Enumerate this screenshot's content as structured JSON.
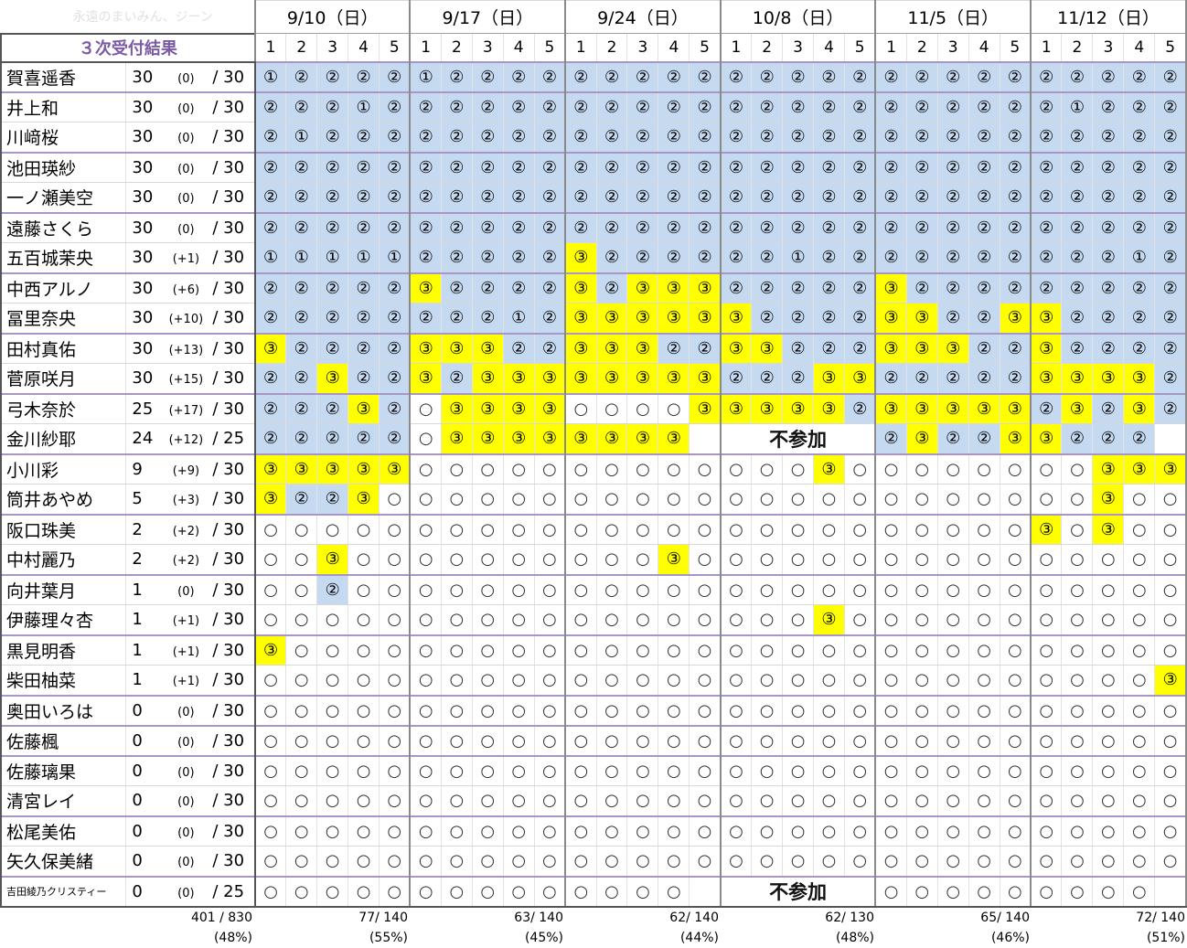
{
  "watermark": "永遠のまいみん、ジーン",
  "result_label": "３次受付結果",
  "dates": [
    "9/10（日）",
    "9/17（日）",
    "9/24（日）",
    "10/8（日）",
    "11/5（日）",
    "11/12（日）"
  ],
  "session_labels": [
    "1",
    "2",
    "3",
    "4",
    "5"
  ],
  "absent_label": "不参加",
  "symbols": {
    "0": "○",
    "1": "①",
    "2": "②",
    "3": "③"
  },
  "members": [
    {
      "name": "賀喜遥香",
      "num": "30",
      "delta": "(0)",
      "total": "/ 30",
      "grp": true,
      "marks": "122221222222222222222222222222"
    },
    {
      "name": "井上和",
      "num": "30",
      "delta": "(0)",
      "total": "/ 30",
      "grp": true,
      "marks": "222122222222222222222222221222"
    },
    {
      "name": "川﨑桜",
      "num": "30",
      "delta": "(0)",
      "total": "/ 30",
      "grp": false,
      "marks": "212222222222222222222222222222"
    },
    {
      "name": "池田瑛紗",
      "num": "30",
      "delta": "(0)",
      "total": "/ 30",
      "grp": true,
      "marks": "222222222222222222222222222222"
    },
    {
      "name": "一ノ瀬美空",
      "num": "30",
      "delta": "(0)",
      "total": "/ 30",
      "grp": false,
      "marks": "222222222222222222222222222222"
    },
    {
      "name": "遠藤さくら",
      "num": "30",
      "delta": "(0)",
      "total": "/ 30",
      "grp": true,
      "marks": "222222222222222222222222222222"
    },
    {
      "name": "五百城茉央",
      "num": "30",
      "delta": "(+1)",
      "total": "/ 30",
      "grp": false,
      "marks": "111112222232222221222222222212"
    },
    {
      "name": "中西アルノ",
      "num": "30",
      "delta": "(+6)",
      "total": "/ 30",
      "grp": true,
      "marks": "222223222232333222223222222222"
    },
    {
      "name": "冨里奈央",
      "num": "30",
      "delta": "(+10)",
      "total": "/ 30",
      "grp": false,
      "marks": "222222221233333322223322332222"
    },
    {
      "name": "田村真佑",
      "num": "30",
      "delta": "(+13)",
      "total": "/ 30",
      "grp": true,
      "marks": "322223332233322332223332232222"
    },
    {
      "name": "菅原咲月",
      "num": "30",
      "delta": "(+15)",
      "total": "/ 30",
      "grp": false,
      "marks": "223223233333333222332222233332"
    },
    {
      "name": "弓木奈於",
      "num": "25",
      "delta": "(+17)",
      "total": "/ 30",
      "grp": true,
      "marks": "222320333300003333323333323232"
    },
    {
      "name": "金川紗耶",
      "num": "24",
      "delta": "(+12)",
      "total": "/ 25",
      "grp": false,
      "marks": "22222033333333XXXXX2232233222"
    },
    {
      "name": "小川彩",
      "num": "9",
      "delta": "(+9)",
      "total": "/ 30",
      "grp": true,
      "marks": "333330000000000000300000000333"
    },
    {
      "name": "筒井あやめ",
      "num": "5",
      "delta": "(+3)",
      "total": "/ 30",
      "grp": false,
      "marks": "322300000000000000000000000300"
    },
    {
      "name": "阪口珠美",
      "num": "2",
      "delta": "(+2)",
      "total": "/ 30",
      "grp": true,
      "marks": "000000000000000000000000030300"
    },
    {
      "name": "中村麗乃",
      "num": "2",
      "delta": "(+2)",
      "total": "/ 30",
      "grp": false,
      "marks": "003000000000030000000000000000"
    },
    {
      "name": "向井葉月",
      "num": "1",
      "delta": "(0)",
      "total": "/ 30",
      "grp": true,
      "marks": "002000000000000000000000000000"
    },
    {
      "name": "伊藤理々杏",
      "num": "1",
      "delta": "(+1)",
      "total": "/ 30",
      "grp": false,
      "marks": "000000000000000000300000000000"
    },
    {
      "name": "黒見明香",
      "num": "1",
      "delta": "(+1)",
      "total": "/ 30",
      "grp": true,
      "marks": "300000000000000000000000000000"
    },
    {
      "name": "柴田柚菜",
      "num": "1",
      "delta": "(+1)",
      "total": "/ 30",
      "grp": false,
      "marks": "000000000000000000000000000003"
    },
    {
      "name": "奥田いろは",
      "num": "0",
      "delta": "(0)",
      "total": "/ 30",
      "grp": true,
      "marks": "000000000000000000000000000000"
    },
    {
      "name": "佐藤楓",
      "num": "0",
      "delta": "(0)",
      "total": "/ 30",
      "grp": true,
      "marks": "000000000000000000000000000000"
    },
    {
      "name": "佐藤璃果",
      "num": "0",
      "delta": "(0)",
      "total": "/ 30",
      "grp": true,
      "marks": "000000000000000000000000000000"
    },
    {
      "name": "清宮レイ",
      "num": "0",
      "delta": "(0)",
      "total": "/ 30",
      "grp": false,
      "marks": "000000000000000000000000000000"
    },
    {
      "name": "松尾美佑",
      "num": "0",
      "delta": "(0)",
      "total": "/ 30",
      "grp": true,
      "marks": "000000000000000000000000000000"
    },
    {
      "name": "矢久保美緒",
      "num": "0",
      "delta": "(0)",
      "total": "/ 30",
      "grp": false,
      "marks": "000000000000000000000000000000"
    },
    {
      "name": "吉田綾乃クリスティー",
      "num": "0",
      "delta": "(0)",
      "total": "/ 25",
      "grp": true,
      "marks": "00000000000000XXXXX0000000000"
    }
  ],
  "totals": [
    {
      "count": "401 / 830",
      "pct": "(48%)"
    },
    {
      "count": "77/ 140",
      "pct": "(55%)"
    },
    {
      "count": "63/ 140",
      "pct": "(45%)"
    },
    {
      "count": "62/ 140",
      "pct": "(44%)"
    },
    {
      "count": "62/ 130",
      "pct": "(48%)"
    },
    {
      "count": "65/ 140",
      "pct": "(46%)"
    },
    {
      "count": "72/ 140",
      "pct": "(51%)"
    }
  ]
}
